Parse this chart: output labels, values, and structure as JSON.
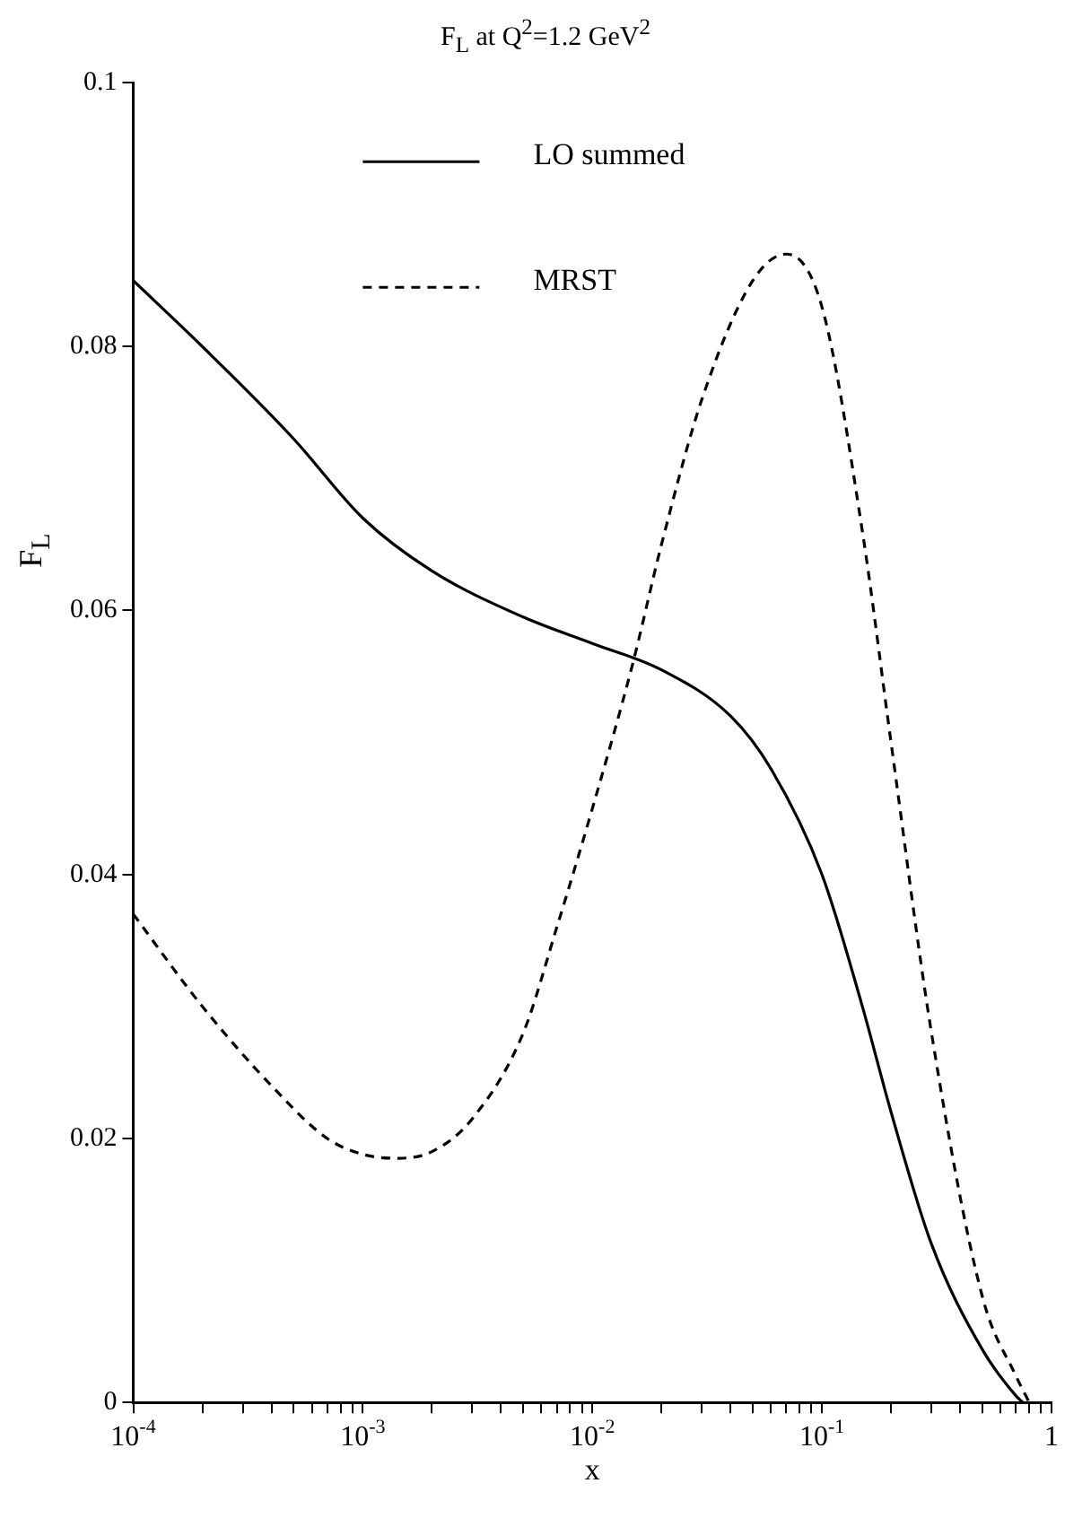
{
  "chart_data": {
    "type": "line",
    "title": "F$_{L}$ at Q$^{2}$=1.2 GeV$^{2}$",
    "xlabel": "x",
    "ylabel": "F$_{L}$",
    "log": "x",
    "legend": "top left",
    "grid": false,
    "marker": "none",
    "xlim": [
      0.0001,
      1
    ],
    "ylim": [
      0,
      0.1
    ],
    "xticks": [
      {
        "value": 0.0001,
        "label": "10$^{-4}$"
      },
      {
        "value": 0.0002,
        "label": null
      },
      {
        "value": 0.0003,
        "label": null
      },
      {
        "value": 0.0004,
        "label": null
      },
      {
        "value": 0.0005,
        "label": null
      },
      {
        "value": 0.0006,
        "label": null
      },
      {
        "value": 0.0007,
        "label": null
      },
      {
        "value": 0.0008,
        "label": null
      },
      {
        "value": 0.0009,
        "label": null
      },
      {
        "value": 0.001,
        "label": "10$^{-3}$"
      },
      {
        "value": 0.002,
        "label": null
      },
      {
        "value": 0.003,
        "label": null
      },
      {
        "value": 0.004,
        "label": null
      },
      {
        "value": 0.005,
        "label": null
      },
      {
        "value": 0.006,
        "label": null
      },
      {
        "value": 0.007,
        "label": null
      },
      {
        "value": 0.008,
        "label": null
      },
      {
        "value": 0.009,
        "label": null
      },
      {
        "value": 0.01,
        "label": "10$^{-2}$"
      },
      {
        "value": 0.02,
        "label": null
      },
      {
        "value": 0.03,
        "label": null
      },
      {
        "value": 0.04,
        "label": null
      },
      {
        "value": 0.05,
        "label": null
      },
      {
        "value": 0.06,
        "label": null
      },
      {
        "value": 0.07,
        "label": null
      },
      {
        "value": 0.08,
        "label": null
      },
      {
        "value": 0.09,
        "label": null
      },
      {
        "value": 0.1,
        "label": "10$^{-1}$"
      },
      {
        "value": 0.2,
        "label": null
      },
      {
        "value": 0.3,
        "label": null
      },
      {
        "value": 0.4,
        "label": null
      },
      {
        "value": 0.5,
        "label": null
      },
      {
        "value": 0.6,
        "label": null
      },
      {
        "value": 0.7,
        "label": null
      },
      {
        "value": 0.8,
        "label": null
      },
      {
        "value": 0.9,
        "label": null
      },
      {
        "value": 1,
        "label": "1"
      }
    ],
    "yticks": [
      0,
      0.02,
      0.04,
      0.06,
      0.08,
      0.1
    ],
    "series": [
      {
        "name": "LO summed",
        "color": "#000000",
        "line_style": "solid",
        "x": [
          0.0001,
          0.0002,
          0.0005,
          0.001,
          0.002,
          0.005,
          0.01,
          0.02,
          0.04,
          0.06,
          0.1,
          0.15,
          0.2,
          0.3,
          0.5,
          0.7,
          0.75
        ],
        "values": [
          0.085,
          0.08,
          0.073,
          0.067,
          0.063,
          0.0595,
          0.0575,
          0.0555,
          0.052,
          0.048,
          0.04,
          0.03,
          0.022,
          0.012,
          0.004,
          0.0005,
          0
        ]
      },
      {
        "name": "MRST",
        "color": "#000000",
        "line_style": "dashed",
        "x": [
          0.0001,
          0.0002,
          0.0004,
          0.0007,
          0.001,
          0.0014,
          0.002,
          0.003,
          0.005,
          0.007,
          0.01,
          0.015,
          0.02,
          0.03,
          0.05,
          0.07,
          0.1,
          0.15,
          0.2,
          0.3,
          0.5,
          0.7,
          0.8
        ],
        "values": [
          0.037,
          0.03,
          0.024,
          0.02,
          0.0188,
          0.0185,
          0.019,
          0.0215,
          0.028,
          0.036,
          0.045,
          0.056,
          0.065,
          0.076,
          0.085,
          0.087,
          0.083,
          0.066,
          0.05,
          0.028,
          0.008,
          0.002,
          0
        ]
      }
    ]
  }
}
